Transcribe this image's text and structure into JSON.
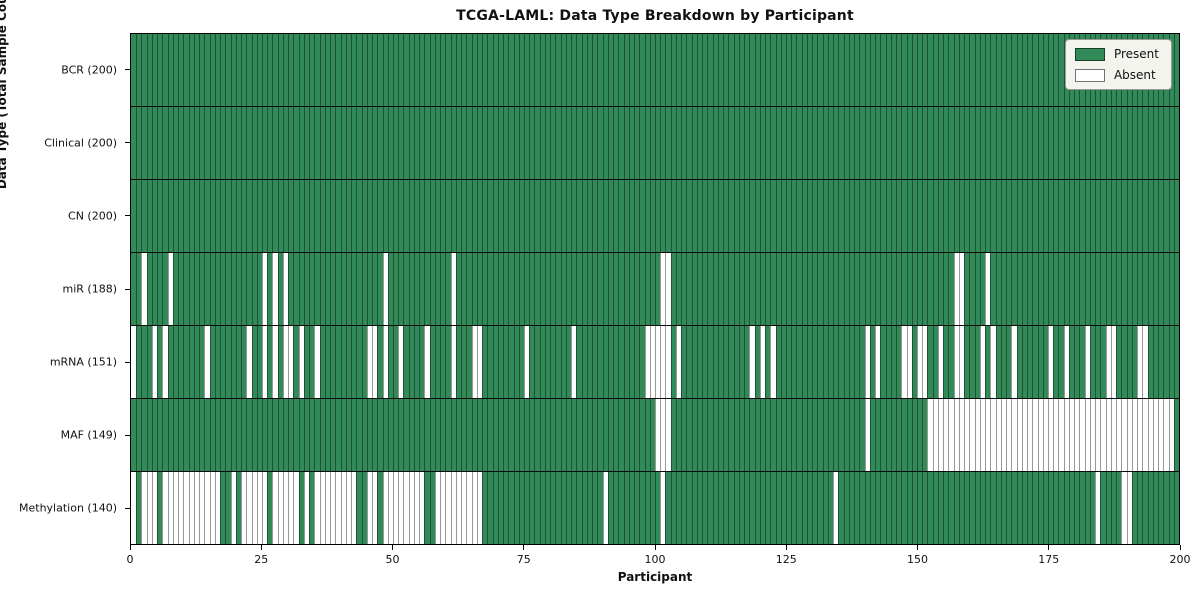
{
  "title": "TCGA-LAML: Data Type Breakdown by Participant",
  "xlabel": "Participant",
  "ylabel": "Data Type (Total Sample Count)",
  "legend": {
    "present_label": "Present",
    "absent_label": "Absent",
    "position": "upper right"
  },
  "colors": {
    "present": "#318a58",
    "absent": "#ffffff",
    "cell_edge": "rgba(0,0,0,0.40)",
    "row_divider": "#0a0a0a",
    "legend_bg": "#f4f4ee"
  },
  "chart_data": {
    "type": "heatmap",
    "title": "TCGA-LAML: Data Type Breakdown by Participant",
    "xlabel": "Participant",
    "ylabel": "Data Type (Total Sample Count)",
    "n_participants": 200,
    "x_range": [
      0,
      200
    ],
    "x_ticks": [
      0,
      25,
      50,
      75,
      100,
      125,
      150,
      175,
      200
    ],
    "grid": false,
    "legend_entries": [
      "Present",
      "Absent"
    ],
    "legend_position": "upper right",
    "value_encoding": {
      "present": 1,
      "absent": 0
    },
    "rows": [
      {
        "label": "BCR (200)",
        "total_samples": 200,
        "absent_participants": []
      },
      {
        "label": "Clinical (200)",
        "total_samples": 200,
        "absent_participants": []
      },
      {
        "label": "CN (200)",
        "total_samples": 200,
        "absent_participants": []
      },
      {
        "label": "miR (188)",
        "total_samples": 188,
        "absent_participants": [
          2,
          7,
          25,
          27,
          29,
          48,
          61,
          101,
          102,
          157,
          158,
          163
        ]
      },
      {
        "label": "mRNA (151)",
        "total_samples": 151,
        "absent_participants": [
          0,
          4,
          6,
          14,
          22,
          25,
          27,
          29,
          30,
          32,
          35,
          45,
          46,
          48,
          51,
          56,
          61,
          65,
          66,
          75,
          84,
          98,
          99,
          100,
          101,
          102,
          104,
          118,
          120,
          122,
          140,
          142,
          147,
          148,
          150,
          151,
          154,
          157,
          158,
          162,
          164,
          168,
          175,
          178,
          182,
          186,
          187,
          192,
          193
        ]
      },
      {
        "label": "MAF (149)",
        "total_samples": 149,
        "absent_participants": [
          100,
          101,
          102,
          140,
          152,
          153,
          154,
          155,
          156,
          157,
          158,
          159,
          160,
          161,
          162,
          163,
          164,
          165,
          166,
          167,
          168,
          169,
          170,
          171,
          172,
          173,
          174,
          175,
          176,
          177,
          178,
          179,
          180,
          181,
          182,
          183,
          184,
          185,
          186,
          187,
          188,
          189,
          190,
          191,
          192,
          193,
          194,
          195,
          196,
          197,
          198
        ]
      },
      {
        "label": "Methylation (140)",
        "total_samples": 140,
        "absent_participants": [
          0,
          2,
          3,
          4,
          6,
          7,
          8,
          9,
          10,
          11,
          12,
          13,
          14,
          15,
          16,
          19,
          21,
          22,
          23,
          24,
          25,
          27,
          28,
          29,
          30,
          31,
          33,
          35,
          36,
          37,
          38,
          39,
          40,
          41,
          42,
          45,
          46,
          48,
          49,
          50,
          51,
          52,
          53,
          54,
          55,
          58,
          59,
          60,
          61,
          62,
          63,
          64,
          65,
          66,
          90,
          101,
          134,
          184,
          189,
          190
        ]
      }
    ]
  }
}
